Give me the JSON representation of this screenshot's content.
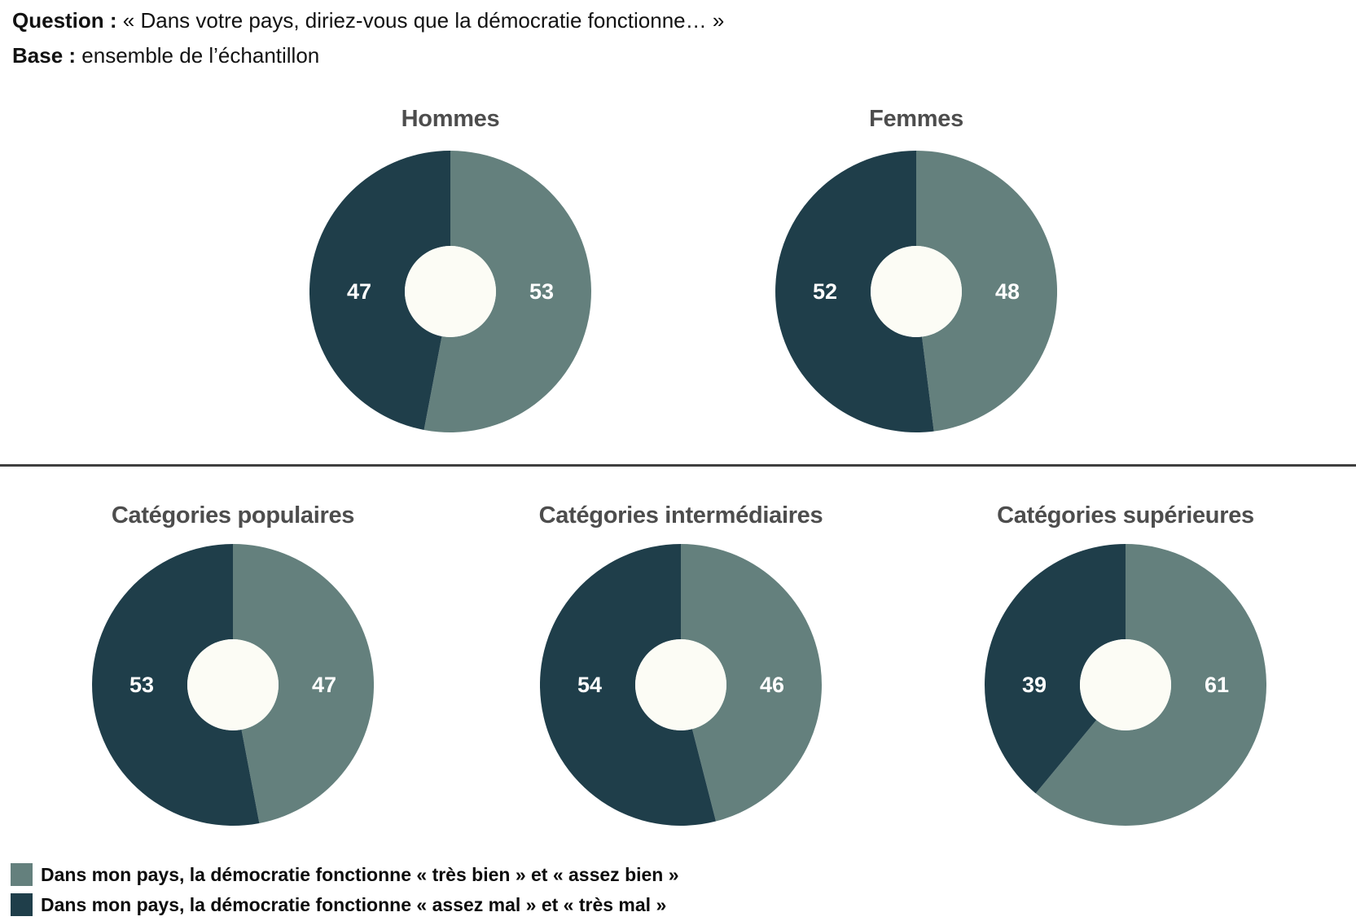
{
  "header": {
    "question_label": "Question :",
    "question_text": "« Dans votre pays, diriez-vous que la démocratie fonctionne… »",
    "base_label": "Base :",
    "base_text": "ensemble de l’échantillon"
  },
  "chart_data": {
    "type": "pie",
    "subtype": "donut",
    "unit": "percent",
    "start_angle_deg": 0,
    "direction": "clockwise",
    "palette": {
      "bien": "#64807D",
      "mal": "#1F3E4A",
      "hole": "#FCFCF5",
      "title_gray": "#4D4D4D",
      "divider_gray": "#3F3F3F",
      "value_label": "#FFFFFF"
    },
    "segments": [
      {
        "key": "bien",
        "label": "Dans mon pays, la démocratie fonctionne « très bien » et « assez bien »",
        "color": "#64807D"
      },
      {
        "key": "mal",
        "label": "Dans mon pays, la démocratie fonctionne « assez mal » et « très mal »",
        "color": "#1F3E4A"
      }
    ],
    "charts": [
      {
        "title": "Hommes",
        "values": {
          "bien": 53,
          "mal": 47
        }
      },
      {
        "title": "Femmes",
        "values": {
          "bien": 48,
          "mal": 52
        }
      },
      {
        "title": "Catégories populaires",
        "values": {
          "bien": 47,
          "mal": 53
        }
      },
      {
        "title": "Catégories intermédiaires",
        "values": {
          "bien": 46,
          "mal": 54
        }
      },
      {
        "title": "Catégories supérieures",
        "values": {
          "bien": 61,
          "mal": 39
        }
      }
    ]
  }
}
